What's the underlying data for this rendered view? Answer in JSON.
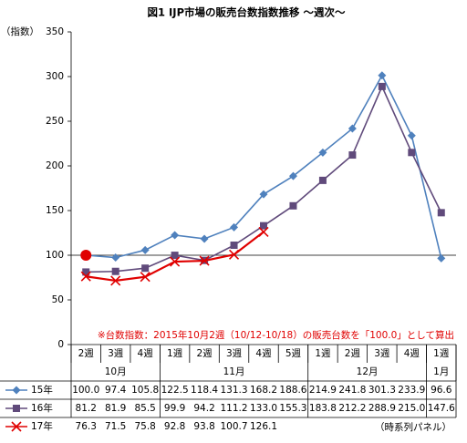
{
  "chart_data": {
    "type": "line",
    "title": "図1 IJP市場の販売台数指数推移 ～週次～",
    "y_label": "（指数）",
    "annotation": "※台数指数：2015年10月2週（10/12-10/18）の販売台数を「100.0」として算出",
    "footnote": "（時系列パネル）",
    "categories": [
      "2週",
      "3週",
      "4週",
      "1週",
      "2週",
      "3週",
      "4週",
      "5週",
      "1週",
      "2週",
      "3週",
      "4週",
      "1週"
    ],
    "groups": [
      {
        "name": "10月",
        "span": 3
      },
      {
        "name": "11月",
        "span": 5
      },
      {
        "name": "12月",
        "span": 4
      },
      {
        "name": "1月",
        "span": 1
      }
    ],
    "ylim": [
      0,
      350
    ],
    "yticks": [
      0,
      50,
      100,
      150,
      200,
      250,
      300,
      350
    ],
    "hline": 100,
    "highlight": {
      "series": 0,
      "index": 0,
      "color": "#e00000"
    },
    "series": [
      {
        "name": "15年",
        "color": "#4f81bd",
        "marker": "diamond",
        "values": [
          100.0,
          97.4,
          105.8,
          122.5,
          118.4,
          131.3,
          168.2,
          188.6,
          214.9,
          241.8,
          301.3,
          233.9,
          96.6
        ],
        "value_labels": [
          "100.0",
          "97.4",
          "105.8",
          "122.5",
          "118.4",
          "131.3",
          "168.2",
          "188.6",
          "214.9",
          "241.8",
          "301.3",
          "233.9",
          "96.6"
        ]
      },
      {
        "name": "16年",
        "color": "#604a7b",
        "marker": "square",
        "values": [
          81.2,
          81.9,
          85.5,
          99.9,
          94.2,
          111.2,
          133.0,
          155.3,
          183.8,
          212.2,
          288.9,
          215.0,
          147.6
        ],
        "value_labels": [
          "81.2",
          "81.9",
          "85.5",
          "99.9",
          "94.2",
          "111.2",
          "133.0",
          "155.3",
          "183.8",
          "212.2",
          "288.9",
          "215.0",
          "147.6"
        ]
      },
      {
        "name": "17年",
        "color": "#e00000",
        "marker": "x",
        "values": [
          76.3,
          71.5,
          75.8,
          92.8,
          93.8,
          100.7,
          126.1,
          null,
          null,
          null,
          null,
          null,
          null
        ],
        "value_labels": [
          "76.3",
          "71.5",
          "75.8",
          "92.8",
          "93.8",
          "100.7",
          "126.1",
          null,
          null,
          null,
          null,
          null,
          null
        ]
      }
    ]
  }
}
